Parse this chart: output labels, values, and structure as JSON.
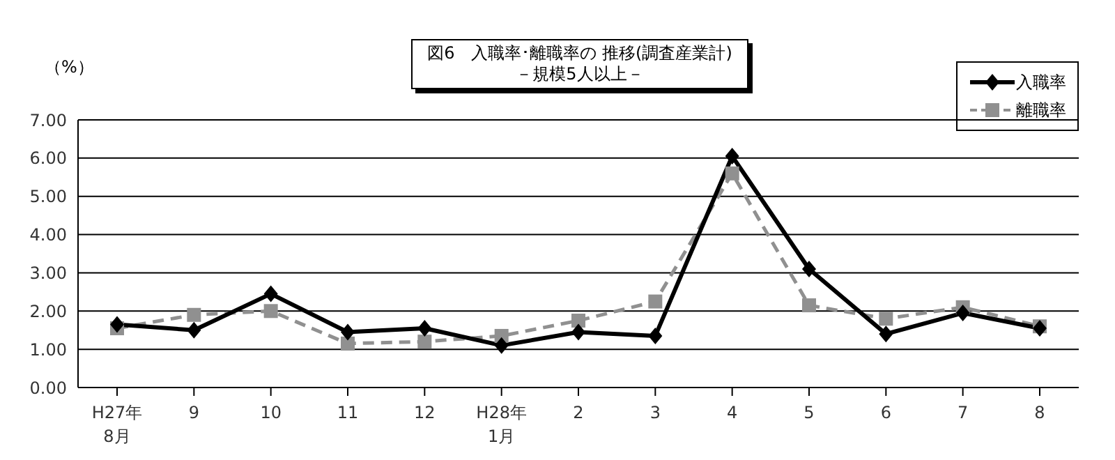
{
  "chart_data": {
    "type": "line",
    "title": "図6　入職率･離職率の 推移(調査産業計)",
    "subtitle": "－規模5人以上－",
    "ylabel": "（%）",
    "categories": [
      "H27年\n8月",
      "9",
      "10",
      "11",
      "12",
      "H28年\n1月",
      "2",
      "3",
      "4",
      "5",
      "6",
      "7",
      "8"
    ],
    "series": [
      {
        "name": "入職率",
        "color": "#000000",
        "marker": "diamond",
        "line_style": "solid",
        "values": [
          1.65,
          1.5,
          2.45,
          1.45,
          1.55,
          1.1,
          1.45,
          1.35,
          6.05,
          3.1,
          1.4,
          1.95,
          1.55
        ]
      },
      {
        "name": "離職率",
        "color": "#909090",
        "marker": "square",
        "line_style": "dashed",
        "values": [
          1.55,
          1.9,
          2.0,
          1.15,
          1.2,
          1.35,
          1.75,
          2.25,
          5.6,
          2.15,
          1.8,
          2.1,
          1.6
        ]
      }
    ],
    "ylim": [
      0,
      7
    ],
    "yticks": [
      {
        "value": 0,
        "label": "0.00"
      },
      {
        "value": 1,
        "label": "1.00"
      },
      {
        "value": 2,
        "label": "2.00"
      },
      {
        "value": 3,
        "label": "3.00"
      },
      {
        "value": 4,
        "label": "4.00"
      },
      {
        "value": 5,
        "label": "5.00"
      },
      {
        "value": 6,
        "label": "6.00"
      },
      {
        "value": 7,
        "label": "7.00"
      }
    ],
    "grid": "y",
    "legend": "top right"
  }
}
